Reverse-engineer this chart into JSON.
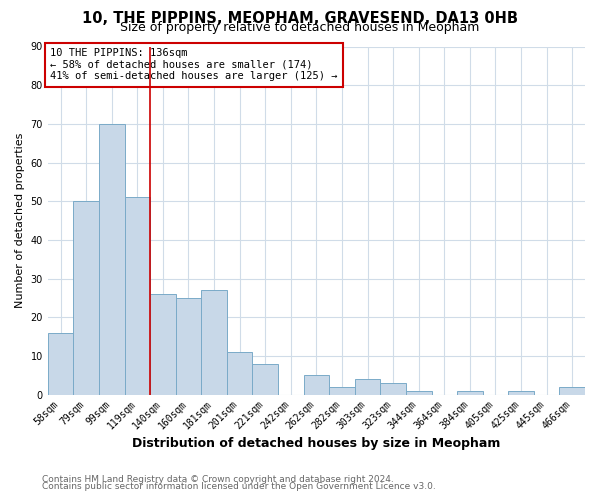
{
  "title": "10, THE PIPPINS, MEOPHAM, GRAVESEND, DA13 0HB",
  "subtitle": "Size of property relative to detached houses in Meopham",
  "xlabel": "Distribution of detached houses by size in Meopham",
  "ylabel": "Number of detached properties",
  "bar_labels": [
    "58sqm",
    "79sqm",
    "99sqm",
    "119sqm",
    "140sqm",
    "160sqm",
    "181sqm",
    "201sqm",
    "221sqm",
    "242sqm",
    "262sqm",
    "282sqm",
    "303sqm",
    "323sqm",
    "344sqm",
    "364sqm",
    "384sqm",
    "405sqm",
    "425sqm",
    "445sqm",
    "466sqm"
  ],
  "bar_values": [
    16,
    50,
    70,
    51,
    26,
    25,
    27,
    11,
    8,
    0,
    5,
    2,
    4,
    3,
    1,
    0,
    1,
    0,
    1,
    0,
    2
  ],
  "bar_color": "#c8d8e8",
  "bar_edgecolor": "#7aaac8",
  "bar_linewidth": 0.7,
  "vline_x": 3.5,
  "vline_color": "#cc0000",
  "ylim": [
    0,
    90
  ],
  "yticks": [
    0,
    10,
    20,
    30,
    40,
    50,
    60,
    70,
    80,
    90
  ],
  "grid_color": "#d0dce8",
  "annotation_text": "10 THE PIPPINS: 136sqm\n← 58% of detached houses are smaller (174)\n41% of semi-detached houses are larger (125) →",
  "annotation_box_edgecolor": "#cc0000",
  "footer_line1": "Contains HM Land Registry data © Crown copyright and database right 2024.",
  "footer_line2": "Contains public sector information licensed under the Open Government Licence v3.0.",
  "background_color": "#ffffff",
  "title_fontsize": 10.5,
  "subtitle_fontsize": 9,
  "xlabel_fontsize": 9,
  "ylabel_fontsize": 8,
  "tick_fontsize": 7,
  "annot_fontsize": 7.5,
  "footer_fontsize": 6.5
}
